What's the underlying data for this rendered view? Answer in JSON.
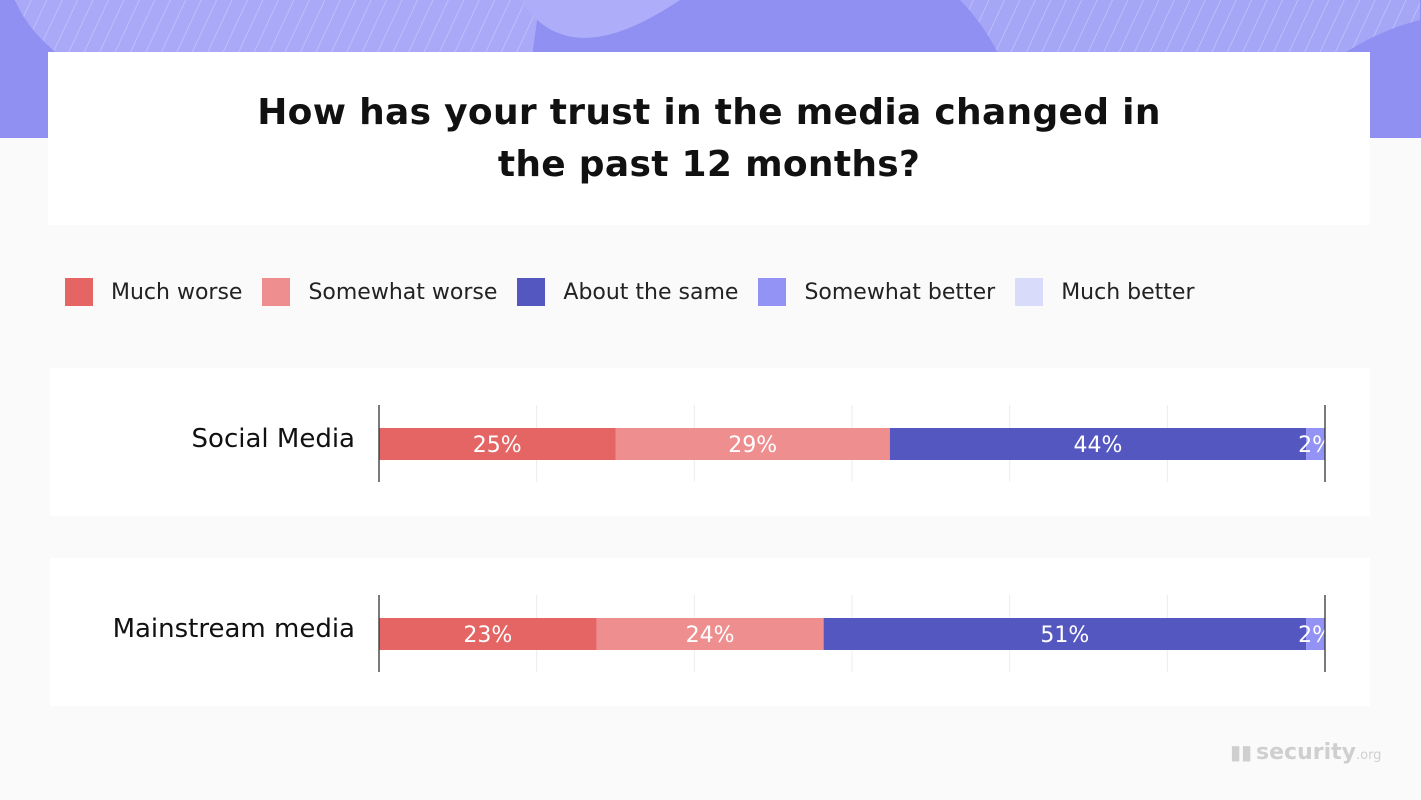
{
  "chart_data": {
    "type": "bar",
    "orientation": "horizontal",
    "stacked": true,
    "title": "How has your trust in the media changed in the past 12 months?",
    "categories": [
      "Social Media",
      "Mainstream media"
    ],
    "series": [
      {
        "name": "Much worse",
        "color": "#e46564",
        "values": [
          25,
          23
        ]
      },
      {
        "name": "Somewhat worse",
        "color": "#ee8e8e",
        "values": [
          29,
          24
        ]
      },
      {
        "name": "About the same",
        "color": "#5557c0",
        "values": [
          44,
          51
        ]
      },
      {
        "name": "Somewhat better",
        "color": "#9393f5",
        "values": [
          2,
          2
        ]
      },
      {
        "name": "Much better",
        "color": "#d9dbfb",
        "values": [
          0,
          0
        ]
      }
    ],
    "value_suffix": "%",
    "xlim": [
      0,
      100
    ],
    "grid": true,
    "legend_position": "top"
  },
  "logo": {
    "text": "security",
    "suffix": ".org"
  }
}
